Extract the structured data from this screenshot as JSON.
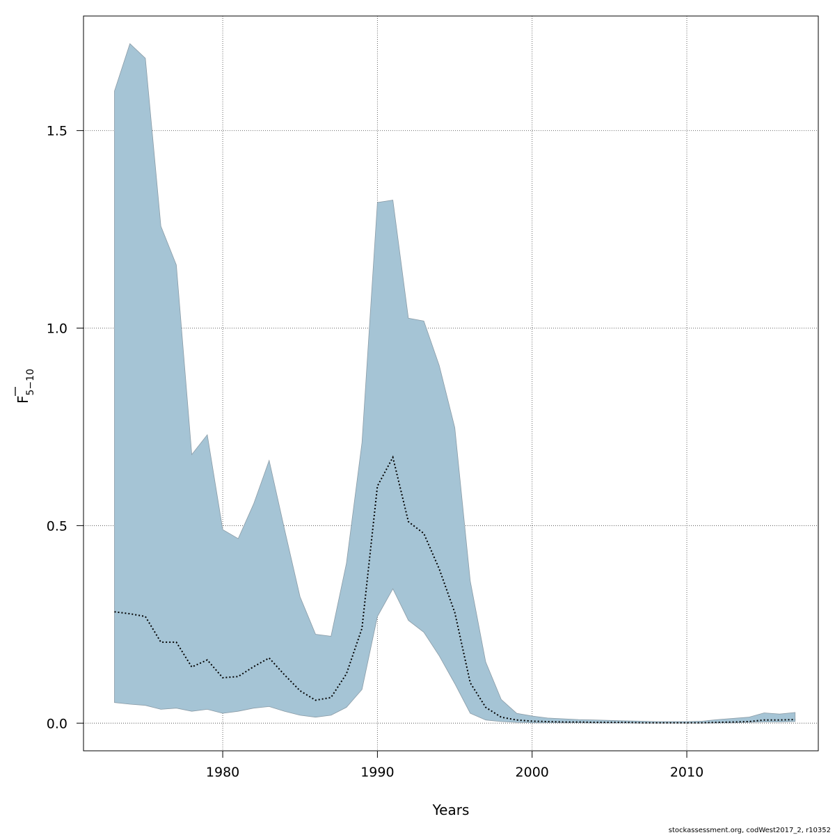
{
  "chart_data": {
    "type": "area",
    "xlabel": "Years",
    "ylabel": "F",
    "ylabel_subscript": "5−10",
    "xlim": [
      1971,
      2018.5
    ],
    "ylim": [
      -0.07,
      1.79
    ],
    "x_ticks": [
      1980,
      1990,
      2000,
      2010
    ],
    "y_ticks": [
      0.0,
      0.5,
      1.0,
      1.5
    ],
    "x_tick_labels": [
      "1980",
      "1990",
      "2000",
      "2010"
    ],
    "y_tick_labels": [
      "0.0",
      "0.5",
      "1.0",
      "1.5"
    ],
    "grid": true,
    "band_color": "#a5c4d5",
    "band_edge_color": "#8a9ba6",
    "line_style": "dotted",
    "series": [
      {
        "years": [
          1973,
          1974,
          1975,
          1976,
          1977,
          1978,
          1979,
          1980,
          1981,
          1982,
          1983,
          1984,
          1985,
          1986,
          1987,
          1988,
          1989,
          1990,
          1991,
          1992,
          1993,
          1994,
          1995,
          1996,
          1997,
          1998,
          1999,
          2000,
          2001,
          2002,
          2003,
          2004,
          2005,
          2006,
          2007,
          2008,
          2009,
          2010,
          2011,
          2012,
          2013,
          2014,
          2015,
          2016,
          2017
        ],
        "estimate": [
          0.282,
          0.277,
          0.27,
          0.205,
          0.205,
          0.142,
          0.16,
          0.115,
          0.118,
          0.143,
          0.165,
          0.122,
          0.082,
          0.058,
          0.065,
          0.125,
          0.24,
          0.6,
          0.673,
          0.51,
          0.48,
          0.39,
          0.28,
          0.102,
          0.04,
          0.015,
          0.008,
          0.005,
          0.004,
          0.003,
          0.003,
          0.002,
          0.002,
          0.002,
          0.001,
          0.001,
          0.001,
          0.001,
          0.001,
          0.002,
          0.003,
          0.004,
          0.008,
          0.008,
          0.009
        ],
        "upper": [
          1.6,
          1.72,
          1.683,
          1.258,
          1.16,
          0.68,
          0.73,
          0.49,
          0.467,
          0.555,
          0.665,
          0.49,
          0.32,
          0.225,
          0.22,
          0.405,
          0.71,
          1.318,
          1.324,
          1.025,
          1.018,
          0.905,
          0.748,
          0.36,
          0.155,
          0.06,
          0.025,
          0.018,
          0.013,
          0.011,
          0.009,
          0.008,
          0.007,
          0.006,
          0.005,
          0.004,
          0.004,
          0.004,
          0.005,
          0.009,
          0.012,
          0.015,
          0.026,
          0.023,
          0.027
        ],
        "lower": [
          0.052,
          0.048,
          0.045,
          0.035,
          0.038,
          0.03,
          0.035,
          0.025,
          0.03,
          0.038,
          0.042,
          0.03,
          0.02,
          0.015,
          0.02,
          0.04,
          0.085,
          0.27,
          0.34,
          0.26,
          0.23,
          0.17,
          0.1,
          0.025,
          0.008,
          0.004,
          0.002,
          0.001,
          0.001,
          0.001,
          0.001,
          0.0005,
          0.0005,
          0.0005,
          0.0003,
          0.0003,
          0.0003,
          0.0003,
          0.0003,
          0.0005,
          0.001,
          0.002,
          0.003,
          0.003,
          0.004
        ]
      }
    ]
  },
  "footer": "stockassessment.org, codWest2017_2, r10352"
}
